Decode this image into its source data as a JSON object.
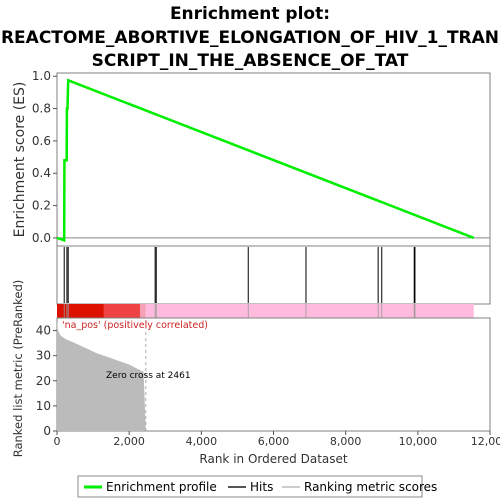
{
  "title_lines": [
    "Enrichment plot:",
    "REACTOME_ABORTIVE_ELONGATION_OF_HIV_1_TRAN",
    "SCRIPT_IN_THE_ABSENCE_OF_TAT"
  ],
  "colors": {
    "es_line": "#00ee00",
    "hits": "#000000",
    "ranked_fill": "#bbbbbb",
    "pos_label": "#cc2222",
    "bar_red_dark": "#dd1100",
    "bar_red_light": "#ee4444",
    "bar_pink": "#ffbbdd"
  },
  "chart_data": [
    {
      "type": "line",
      "ylabel": "Enrichment score (ES)",
      "xlim": [
        0,
        12000
      ],
      "ylim": [
        -0.05,
        1.02
      ],
      "yticks": [
        "0.0",
        "0.2",
        "0.4",
        "0.6",
        "0.8",
        "1.0"
      ],
      "series": [
        {
          "name": "Enrichment profile",
          "x": [
            0,
            200,
            205,
            270,
            275,
            290,
            310,
            11550
          ],
          "y": [
            0.0,
            -0.015,
            0.48,
            0.48,
            0.8,
            0.8,
            0.975,
            0.0
          ]
        }
      ]
    },
    {
      "type": "scatter",
      "name": "Hits",
      "hit_ranks": [
        200,
        275,
        310,
        2720,
        2750,
        5300,
        6900,
        8900,
        9000,
        9900,
        9920
      ]
    },
    {
      "type": "area",
      "ylabel": "Ranked list metric (PreRanked)",
      "xlabel": "Rank in Ordered Dataset",
      "xlim": [
        0,
        12000
      ],
      "ylim": [
        0,
        45
      ],
      "xticks": [
        "0",
        "2,000",
        "4,000",
        "6,000",
        "8,000",
        "10,000",
        "12,000"
      ],
      "yticks": [
        "0",
        "10",
        "20",
        "30",
        "40"
      ],
      "x": [
        0,
        30,
        100,
        250,
        500,
        800,
        1100,
        1400,
        1700,
        2000,
        2200,
        2400,
        2461
      ],
      "y": [
        44,
        40,
        38,
        36.5,
        35,
        33,
        31,
        29.5,
        28,
        26.5,
        25,
        23.5,
        0
      ],
      "pos_label": "'na_pos' (positively correlated)",
      "zero_cross_label": "Zero cross at 2461",
      "zero_cross": 2461
    }
  ],
  "legend": {
    "items": [
      {
        "label": "Enrichment profile"
      },
      {
        "label": "Hits"
      },
      {
        "label": "Ranking metric scores"
      }
    ]
  }
}
